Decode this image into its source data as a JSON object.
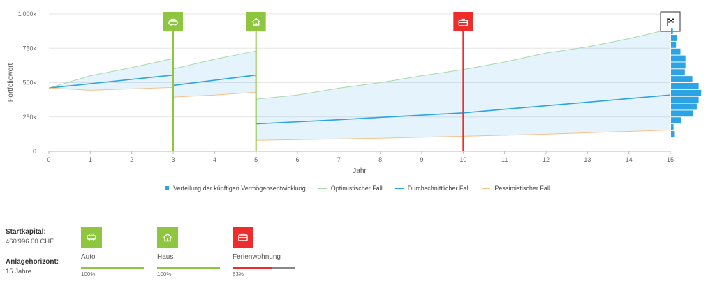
{
  "chart_data": {
    "type": "area",
    "xlabel": "Jahr",
    "ylabel": "Portfoliowert",
    "xlim": [
      0,
      15
    ],
    "ylim": [
      0,
      1000000
    ],
    "x_ticks": [
      "0",
      "1",
      "2",
      "3",
      "4",
      "5",
      "6",
      "7",
      "8",
      "9",
      "10",
      "11",
      "12",
      "13",
      "14",
      "15"
    ],
    "y_ticks": [
      {
        "value": 0,
        "label": "0"
      },
      {
        "value": 250000,
        "label": "250k"
      },
      {
        "value": 500000,
        "label": "500k"
      },
      {
        "value": 750000,
        "label": "750k"
      },
      {
        "value": 1000000,
        "label": "1'000k"
      }
    ],
    "grid": "horizontal",
    "legend_placement": "bottom",
    "series": [
      {
        "name": "Optimistischer Fall",
        "color": "#a8d8a8",
        "x": [
          0,
          1,
          2,
          3,
          3,
          4,
          5,
          5,
          6,
          7,
          8,
          9,
          10,
          11,
          12,
          13,
          14,
          15
        ],
        "y": [
          460996,
          550000,
          610000,
          675000,
          600000,
          670000,
          730000,
          380000,
          410000,
          460000,
          500000,
          550000,
          595000,
          650000,
          715000,
          760000,
          820000,
          890000
        ]
      },
      {
        "name": "Durchschnittlicher Fall",
        "color": "#2ca3e4",
        "x": [
          0,
          3,
          3,
          5,
          5,
          7,
          10,
          15
        ],
        "y": [
          460996,
          555000,
          480000,
          555000,
          200000,
          230000,
          280000,
          410000
        ]
      },
      {
        "name": "Pessimistischer Fall",
        "color": "#f5c08a",
        "x": [
          0,
          1,
          2,
          3,
          3,
          4,
          5,
          5,
          8,
          10,
          12,
          15
        ],
        "y": [
          460996,
          445000,
          455000,
          465000,
          395000,
          410000,
          430000,
          80000,
          95000,
          110000,
          125000,
          155000
        ]
      }
    ],
    "distribution": {
      "name": "Verteilung der künftigen Vermögensentwicklung",
      "color": "#2ca3e4",
      "bins": [
        {
          "y_from": 850000,
          "y_to": 900000,
          "count": 0.3
        },
        {
          "y_from": 800000,
          "y_to": 850000,
          "count": 1
        },
        {
          "y_from": 750000,
          "y_to": 800000,
          "count": 0.8
        },
        {
          "y_from": 700000,
          "y_to": 750000,
          "count": 1.5
        },
        {
          "y_from": 650000,
          "y_to": 700000,
          "count": 2.3
        },
        {
          "y_from": 600000,
          "y_to": 650000,
          "count": 2.3
        },
        {
          "y_from": 550000,
          "y_to": 600000,
          "count": 2.2
        },
        {
          "y_from": 500000,
          "y_to": 550000,
          "count": 3.4
        },
        {
          "y_from": 450000,
          "y_to": 500000,
          "count": 4.4
        },
        {
          "y_from": 400000,
          "y_to": 450000,
          "count": 4.8
        },
        {
          "y_from": 350000,
          "y_to": 400000,
          "count": 4.4
        },
        {
          "y_from": 300000,
          "y_to": 350000,
          "count": 4.1
        },
        {
          "y_from": 250000,
          "y_to": 300000,
          "count": 3.5
        },
        {
          "y_from": 200000,
          "y_to": 250000,
          "count": 1.6
        },
        {
          "y_from": 150000,
          "y_to": 200000,
          "count": 0.4
        },
        {
          "y_from": 100000,
          "y_to": 150000,
          "count": 0.5
        }
      ]
    },
    "markers": [
      {
        "x": 3,
        "icon": "car-icon",
        "color": "#8ec63f"
      },
      {
        "x": 5,
        "icon": "house-icon",
        "color": "#8ec63f"
      },
      {
        "x": 10,
        "icon": "briefcase-icon",
        "color": "#ee2c2c"
      },
      {
        "x": 15,
        "icon": "finish-flag-icon",
        "color": "#ffffff"
      }
    ]
  },
  "legend": {
    "distribution": "Verteilung der künftigen Vermögensentwicklung",
    "optimistic": "Optimistischer Fall",
    "average": "Durchschnittlicher Fall",
    "pessimistic": "Pessimistischer Fall"
  },
  "info": {
    "start_label": "Startkapital:",
    "start_value": "460'996.00 CHF",
    "horizon_label": "Anlagehorizont:",
    "horizon_value": "15 Jahre"
  },
  "goals": [
    {
      "name": "Auto",
      "icon": "car-icon",
      "color": "#8ec63f",
      "progress_label": "100%",
      "progress": 1.0
    },
    {
      "name": "Haus",
      "icon": "house-icon",
      "color": "#8ec63f",
      "progress_label": "100%",
      "progress": 1.0
    },
    {
      "name": "Ferienwohnung",
      "icon": "briefcase-icon",
      "color": "#ee2c2c",
      "progress_label": "63%",
      "progress": 0.63
    }
  ]
}
